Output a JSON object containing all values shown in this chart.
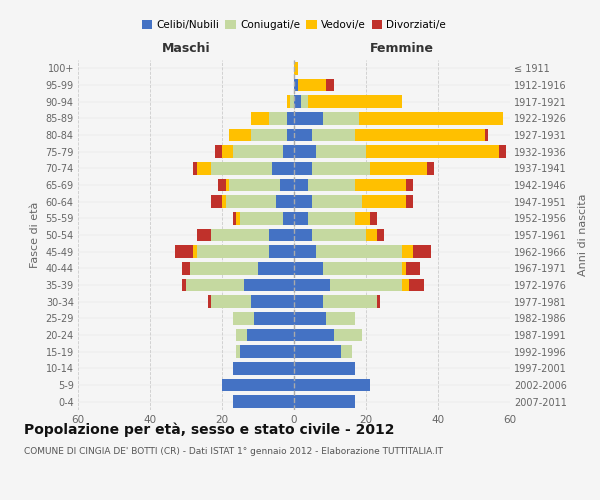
{
  "age_groups": [
    "0-4",
    "5-9",
    "10-14",
    "15-19",
    "20-24",
    "25-29",
    "30-34",
    "35-39",
    "40-44",
    "45-49",
    "50-54",
    "55-59",
    "60-64",
    "65-69",
    "70-74",
    "75-79",
    "80-84",
    "85-89",
    "90-94",
    "95-99",
    "100+"
  ],
  "birth_years": [
    "2007-2011",
    "2002-2006",
    "1997-2001",
    "1992-1996",
    "1987-1991",
    "1982-1986",
    "1977-1981",
    "1972-1976",
    "1967-1971",
    "1962-1966",
    "1957-1961",
    "1952-1956",
    "1947-1951",
    "1942-1946",
    "1937-1941",
    "1932-1936",
    "1927-1931",
    "1922-1926",
    "1917-1921",
    "1912-1916",
    "≤ 1911"
  ],
  "colors": {
    "celibi": "#4472c4",
    "coniugati": "#c5d9a0",
    "vedovi": "#ffc000",
    "divorziati": "#c0312b"
  },
  "male": {
    "celibi": [
      17,
      20,
      17,
      15,
      13,
      11,
      12,
      14,
      10,
      7,
      7,
      3,
      5,
      4,
      6,
      3,
      2,
      2,
      0,
      0,
      0
    ],
    "coniugati": [
      0,
      0,
      0,
      1,
      3,
      6,
      11,
      16,
      19,
      20,
      16,
      12,
      14,
      14,
      17,
      14,
      10,
      5,
      1,
      0,
      0
    ],
    "vedovi": [
      0,
      0,
      0,
      0,
      0,
      0,
      0,
      0,
      0,
      1,
      0,
      1,
      1,
      1,
      4,
      3,
      6,
      5,
      1,
      0,
      0
    ],
    "divorziati": [
      0,
      0,
      0,
      0,
      0,
      0,
      1,
      1,
      2,
      5,
      4,
      1,
      3,
      2,
      1,
      2,
      0,
      0,
      0,
      0,
      0
    ]
  },
  "female": {
    "celibi": [
      17,
      21,
      17,
      13,
      11,
      9,
      8,
      10,
      8,
      6,
      5,
      4,
      5,
      4,
      5,
      6,
      5,
      8,
      2,
      1,
      0
    ],
    "coniugati": [
      0,
      0,
      0,
      3,
      8,
      8,
      15,
      20,
      22,
      24,
      15,
      13,
      14,
      13,
      16,
      14,
      12,
      10,
      2,
      0,
      0
    ],
    "vedovi": [
      0,
      0,
      0,
      0,
      0,
      0,
      0,
      2,
      1,
      3,
      3,
      4,
      12,
      14,
      16,
      37,
      36,
      40,
      26,
      8,
      1
    ],
    "divorziati": [
      0,
      0,
      0,
      0,
      0,
      0,
      1,
      4,
      4,
      5,
      2,
      2,
      2,
      2,
      2,
      2,
      1,
      0,
      0,
      2,
      0
    ]
  },
  "title": "Popolazione per età, sesso e stato civile - 2012",
  "subtitle": "COMUNE DI CINGIA DE' BOTTI (CR) - Dati ISTAT 1° gennaio 2012 - Elaborazione TUTTITALIA.IT",
  "xlabel_left": "Maschi",
  "xlabel_right": "Femmine",
  "ylabel_left": "Fasce di età",
  "ylabel_right": "Anni di nascita",
  "xlim": 60,
  "xticks": [
    -60,
    -40,
    -20,
    0,
    20,
    40,
    60
  ],
  "legend_labels": [
    "Celibi/Nubili",
    "Coniugati/e",
    "Vedovi/e",
    "Divorziati/e"
  ],
  "bg_color": "#f5f5f5",
  "plot_bg_color": "#f5f5f5",
  "grid_color": "#cccccc",
  "bar_height": 0.75,
  "title_fontsize": 10,
  "subtitle_fontsize": 6.5
}
